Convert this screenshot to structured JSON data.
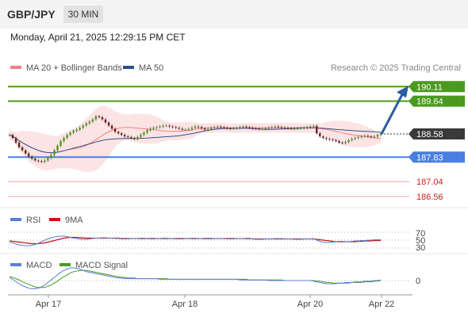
{
  "header": {
    "symbol": "GBP/JPY",
    "timeframe": "30 MIN"
  },
  "datetime": "Monday, April 21, 2025 12:29:15 PM CET",
  "legend": {
    "ma20": "MA 20 + Bollinger Bands",
    "ma50": "MA 50",
    "credit": "Research © 2025 Trading Central",
    "rsi": "RSI",
    "rsi_ma": "9MA",
    "macd": "MACD",
    "macd_signal": "MACD Signal"
  },
  "colors": {
    "ma20": "#f08080",
    "ma50": "#2c4f8c",
    "band_fill": "#fde4e4",
    "resistance": "#4a9a1f",
    "support": "#4a7fe0",
    "minor": "#f0a0a0",
    "price_tag": "#3a3a3a",
    "arrow": "#2c5d9c",
    "rsi": "#5b7fd6",
    "rsi_ma": "#cc1111",
    "macd": "#5b7fd6",
    "macd_signal": "#4a9a1f"
  },
  "chart_data": [
    {
      "type": "candlestick",
      "name": "price",
      "x_ticks": [
        "Apr 17",
        "Apr 18",
        "Apr 20",
        "Apr 22"
      ],
      "ylim": [
        186.3,
        190.45
      ],
      "last_price": 188.58,
      "levels": [
        {
          "label": "190.11",
          "value": 190.11,
          "kind": "resistance"
        },
        {
          "label": "189.64",
          "value": 189.64,
          "kind": "resistance"
        },
        {
          "label": "187.83",
          "value": 187.83,
          "kind": "support"
        },
        {
          "label": "187.04",
          "value": 187.04,
          "kind": "minor"
        },
        {
          "label": "186.56",
          "value": 186.56,
          "kind": "minor"
        }
      ],
      "last_price_label": "188.58",
      "forecast_target": 190.11,
      "close": [
        188.55,
        188.45,
        188.3,
        188.15,
        188.05,
        187.95,
        187.85,
        187.78,
        187.72,
        187.7,
        187.68,
        187.72,
        187.8,
        187.9,
        188.05,
        188.2,
        188.35,
        188.45,
        188.55,
        188.62,
        188.68,
        188.72,
        188.78,
        188.85,
        188.92,
        188.98,
        189.05,
        189.15,
        189.12,
        189.05,
        188.95,
        188.85,
        188.75,
        188.65,
        188.6,
        188.55,
        188.5,
        188.48,
        188.45,
        188.42,
        188.48,
        188.55,
        188.62,
        188.7,
        188.75,
        188.78,
        188.8,
        188.82,
        188.85,
        188.85,
        188.82,
        188.8,
        188.78,
        188.75,
        188.72,
        188.72,
        188.74,
        188.78,
        188.82,
        188.8,
        188.76,
        188.72,
        188.74,
        188.78,
        188.8,
        188.82,
        188.8,
        188.78,
        188.76,
        188.75,
        188.76,
        188.78,
        188.8,
        188.82,
        188.8,
        188.78,
        188.76,
        188.75,
        188.74,
        188.75,
        188.76,
        188.78,
        188.8,
        188.82,
        188.8,
        188.78,
        188.77,
        188.76,
        188.75,
        188.75,
        188.76,
        188.77,
        188.78,
        188.8,
        188.82,
        188.84,
        188.6,
        188.5,
        188.45,
        188.42,
        188.4,
        188.38,
        188.35,
        188.3,
        188.28,
        188.32,
        188.38,
        188.42,
        188.45,
        188.48,
        188.5,
        188.52,
        188.5,
        188.48,
        188.5,
        188.55,
        188.58
      ],
      "rsi": [
        45,
        43,
        40,
        38,
        37,
        36,
        36,
        37,
        39,
        42,
        46,
        50,
        53,
        56,
        58,
        59,
        60,
        60,
        59,
        57,
        55,
        54,
        53,
        52,
        52,
        53,
        54,
        55,
        55,
        56,
        56,
        55,
        55,
        54,
        54,
        53,
        53,
        53,
        54,
        54,
        54,
        55,
        55,
        54,
        53,
        53,
        54,
        54,
        55,
        55,
        54,
        54,
        53,
        53,
        53,
        54,
        54,
        55,
        55,
        54,
        54,
        53,
        53,
        53,
        54,
        54,
        54,
        54,
        53,
        53,
        53,
        54,
        54,
        54,
        53,
        53,
        53,
        52,
        52,
        52,
        53,
        53,
        53,
        54,
        54,
        54,
        53,
        53,
        53,
        52,
        52,
        52,
        53,
        53,
        53,
        54,
        50,
        47,
        45,
        44,
        44,
        45,
        46,
        47,
        47,
        46,
        46,
        47,
        48,
        48,
        49,
        49,
        50,
        50,
        51,
        51,
        51
      ],
      "rsi_ma": [
        48,
        47,
        46,
        45,
        44,
        43,
        42,
        41,
        41,
        41,
        42,
        43,
        45,
        47,
        49,
        51,
        53,
        55,
        56,
        57,
        57,
        57,
        56,
        56,
        55,
        55,
        55,
        55,
        55,
        55,
        55,
        55,
        55,
        55,
        55,
        54,
        54,
        54,
        54,
        54,
        54,
        54,
        54,
        54,
        54,
        54,
        54,
        54,
        54,
        54,
        54,
        54,
        54,
        54,
        54,
        54,
        54,
        54,
        54,
        54,
        54,
        54,
        54,
        54,
        54,
        54,
        54,
        54,
        54,
        54,
        54,
        54,
        54,
        54,
        54,
        54,
        53,
        53,
        53,
        53,
        53,
        53,
        53,
        53,
        53,
        53,
        53,
        53,
        53,
        53,
        53,
        53,
        53,
        53,
        53,
        53,
        52,
        51,
        50,
        49,
        48,
        47,
        46,
        46,
        46,
        46,
        46,
        46,
        46,
        47,
        47,
        48,
        48,
        48,
        49,
        49,
        49
      ],
      "macd": [
        0.05,
        0.02,
        -0.02,
        -0.05,
        -0.08,
        -0.1,
        -0.12,
        -0.13,
        -0.13,
        -0.12,
        -0.1,
        -0.07,
        -0.03,
        0.01,
        0.05,
        0.09,
        0.13,
        0.16,
        0.18,
        0.2,
        0.2,
        0.19,
        0.18,
        0.16,
        0.14,
        0.13,
        0.12,
        0.11,
        0.1,
        0.09,
        0.08,
        0.07,
        0.06,
        0.05,
        0.04,
        0.04,
        0.03,
        0.03,
        0.03,
        0.03,
        0.03,
        0.03,
        0.03,
        0.03,
        0.03,
        0.03,
        0.03,
        0.02,
        0.02,
        0.02,
        0.02,
        0.02,
        0.02,
        0.02,
        0.02,
        0.02,
        0.02,
        0.02,
        0.02,
        0.02,
        0.02,
        0.02,
        0.02,
        0.02,
        0.02,
        0.02,
        0.02,
        0.02,
        0.02,
        0.02,
        0.02,
        0.02,
        0.01,
        0.01,
        0.01,
        0.01,
        0.01,
        0.01,
        0.01,
        0.01,
        0.01,
        0.0,
        0.0,
        0.0,
        0.0,
        0.0,
        0.0,
        0.0,
        0.0,
        0.0,
        0.0,
        0.0,
        0.0,
        0.0,
        0.0,
        -0.01,
        -0.02,
        -0.03,
        -0.04,
        -0.05,
        -0.05,
        -0.05,
        -0.05,
        -0.04,
        -0.04,
        -0.03,
        -0.03,
        -0.03,
        -0.02,
        -0.02,
        -0.02,
        -0.01,
        -0.01,
        -0.01,
        0.0,
        0.0,
        0.01
      ],
      "macd_signal": [
        0.06,
        0.05,
        0.03,
        0.01,
        -0.02,
        -0.04,
        -0.06,
        -0.08,
        -0.1,
        -0.11,
        -0.11,
        -0.11,
        -0.09,
        -0.07,
        -0.04,
        -0.01,
        0.03,
        0.06,
        0.09,
        0.12,
        0.14,
        0.15,
        0.16,
        0.16,
        0.16,
        0.15,
        0.14,
        0.13,
        0.12,
        0.11,
        0.1,
        0.09,
        0.08,
        0.07,
        0.06,
        0.05,
        0.05,
        0.04,
        0.04,
        0.04,
        0.03,
        0.03,
        0.03,
        0.03,
        0.03,
        0.03,
        0.03,
        0.03,
        0.03,
        0.03,
        0.02,
        0.02,
        0.02,
        0.02,
        0.02,
        0.02,
        0.02,
        0.02,
        0.02,
        0.02,
        0.02,
        0.02,
        0.02,
        0.02,
        0.02,
        0.02,
        0.02,
        0.02,
        0.02,
        0.02,
        0.02,
        0.02,
        0.02,
        0.02,
        0.02,
        0.01,
        0.01,
        0.01,
        0.01,
        0.01,
        0.01,
        0.01,
        0.01,
        0.01,
        0.01,
        0.01,
        0.0,
        0.0,
        0.0,
        0.0,
        0.0,
        0.0,
        0.0,
        0.0,
        0.0,
        0.0,
        -0.01,
        -0.01,
        -0.02,
        -0.03,
        -0.03,
        -0.04,
        -0.04,
        -0.04,
        -0.04,
        -0.04,
        -0.04,
        -0.03,
        -0.03,
        -0.03,
        -0.03,
        -0.02,
        -0.02,
        -0.02,
        -0.01,
        -0.01,
        0.0
      ]
    }
  ],
  "rsi_panel": {
    "ticks": [
      "70",
      "50",
      "30"
    ]
  },
  "macd_panel": {
    "ticks": [
      "0"
    ]
  }
}
